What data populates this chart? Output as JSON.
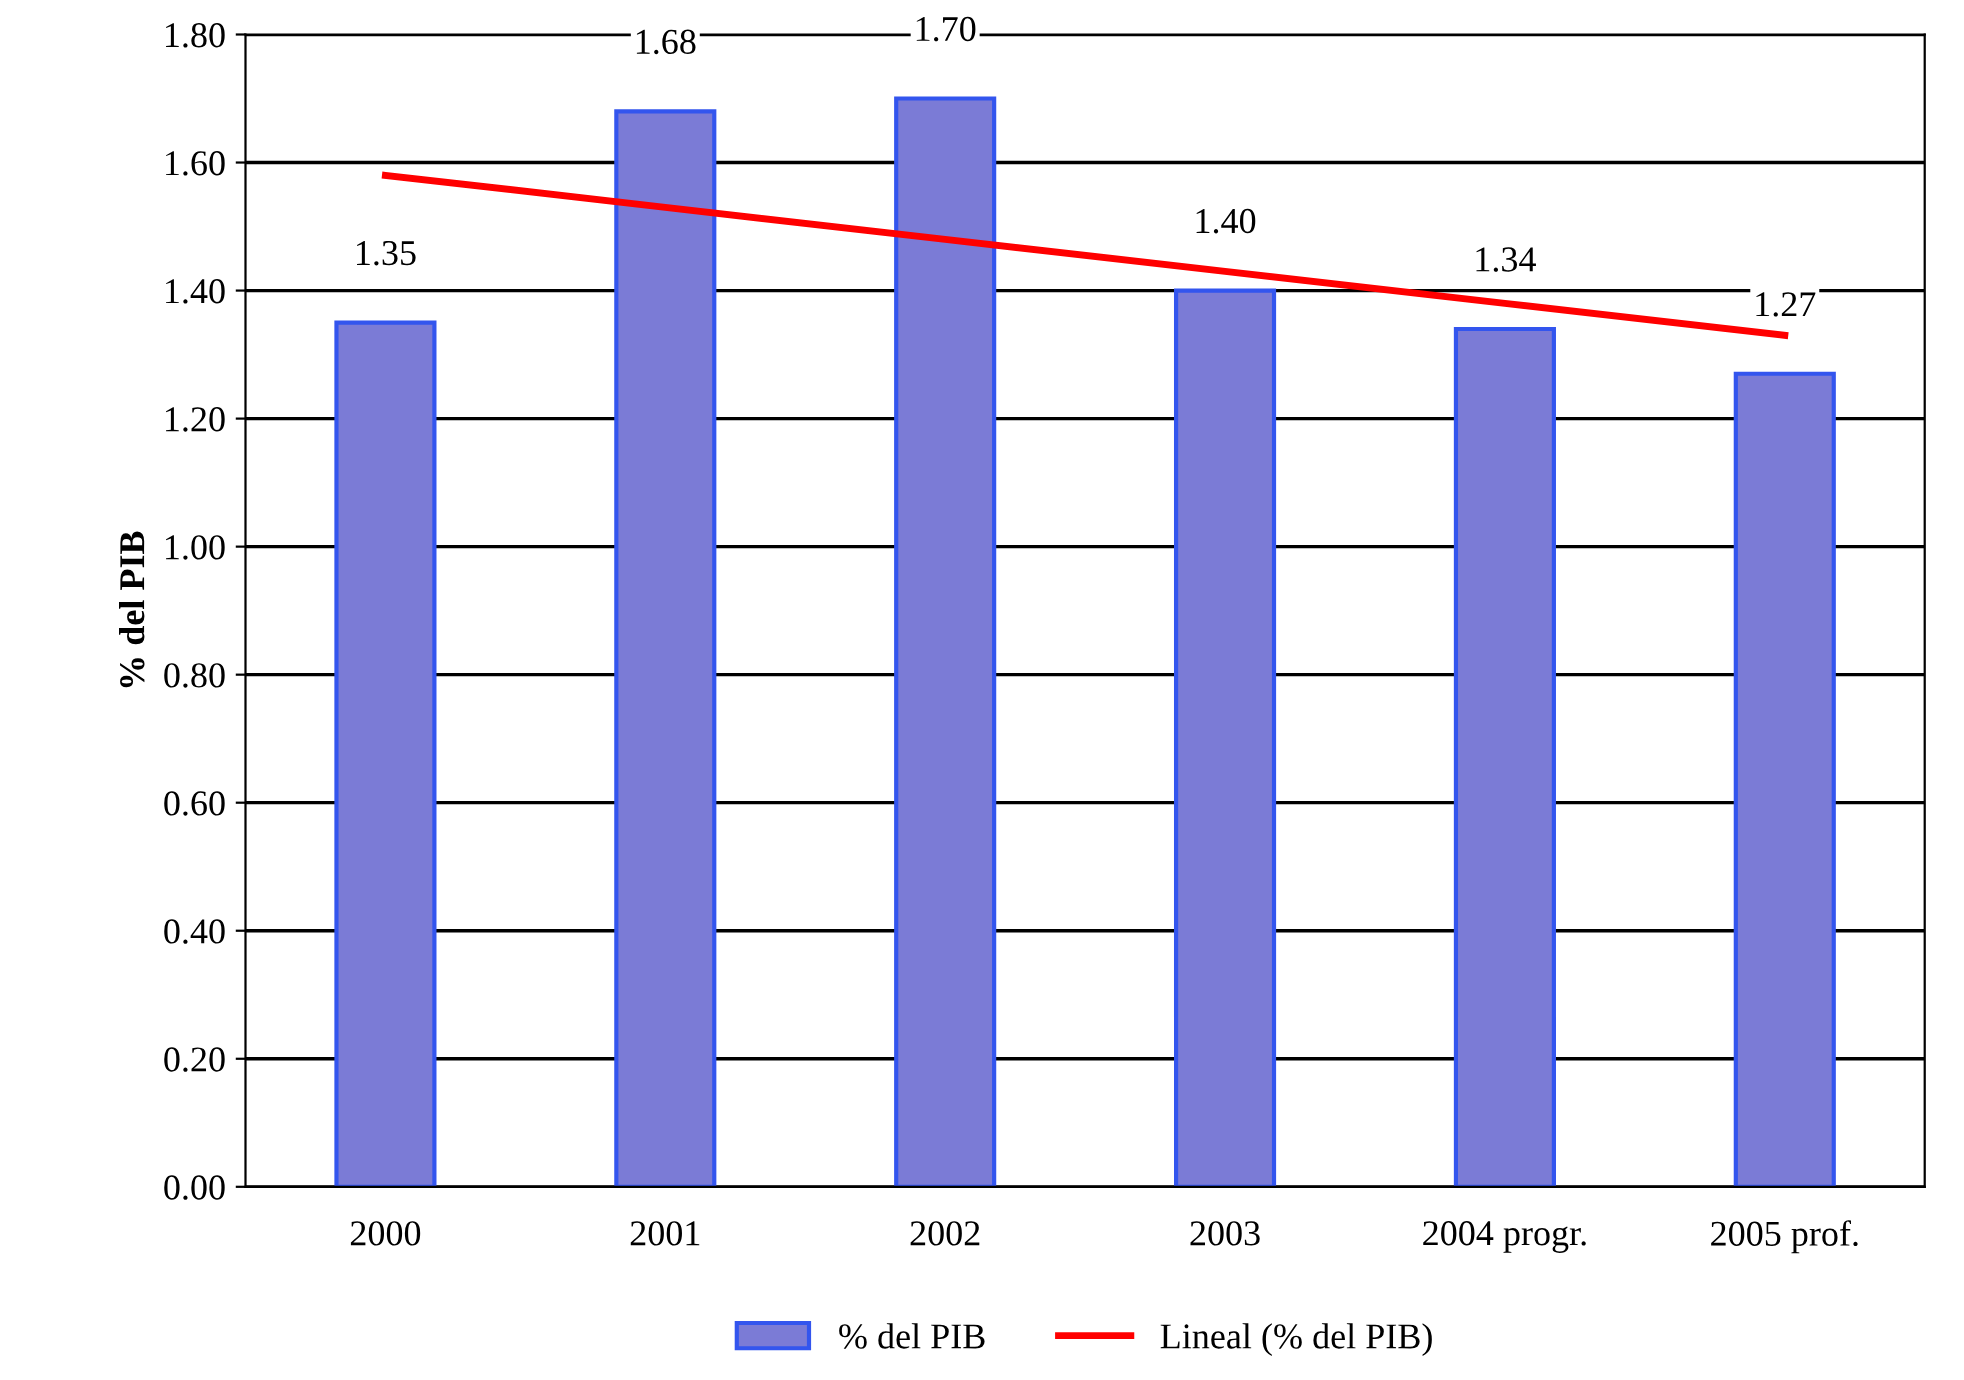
{
  "chart_data": {
    "type": "bar",
    "ylabel": "% del PIB",
    "categories": [
      "2000",
      "2001",
      "2002",
      "2003",
      "2004 progr.",
      "2005 prof."
    ],
    "series": [
      {
        "name": "% del PIB",
        "color": "#7b7bd6",
        "values": [
          1.35,
          1.68,
          1.7,
          1.4,
          1.34,
          1.27
        ],
        "value_labels": [
          "1.35",
          "1.68",
          "1.70",
          "1.40",
          "1.34",
          "1.27"
        ]
      },
      {
        "name": "Lineal (% del PIB)",
        "type": "line",
        "color": "#ff0000",
        "values": [
          1.58,
          1.53,
          1.48,
          1.43,
          1.38,
          1.33
        ]
      }
    ],
    "ylim": [
      0,
      1.8
    ],
    "yticks": [
      {
        "value": 0,
        "label": "0.00"
      },
      {
        "value": 0.2,
        "label": "0.20"
      },
      {
        "value": 0.4,
        "label": "0.40"
      },
      {
        "value": 0.6,
        "label": "0.60"
      },
      {
        "value": 0.8,
        "label": "0.80"
      },
      {
        "value": 1.0,
        "label": "1.00"
      },
      {
        "value": 1.2,
        "label": "1.20"
      },
      {
        "value": 1.4,
        "label": "1.40"
      },
      {
        "value": 1.6,
        "label": "1.60"
      },
      {
        "value": 1.8,
        "label": "1.80"
      }
    ],
    "grid": "y",
    "legend": "bottom",
    "marker": "none",
    "line_style": "solid"
  }
}
